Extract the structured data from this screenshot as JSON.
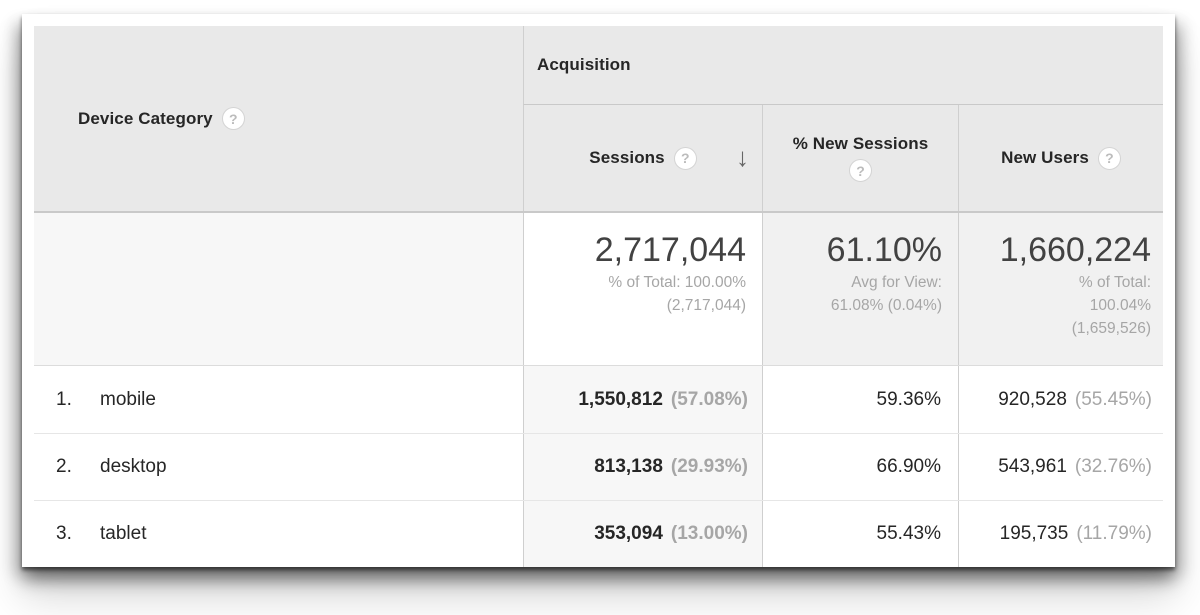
{
  "icons": {
    "help_glyph": "?",
    "sort_desc_glyph": "↓"
  },
  "table": {
    "dimension_header": {
      "label": "Device Category"
    },
    "group_header": {
      "label": "Acquisition"
    },
    "columns": [
      {
        "label": "Sessions",
        "sorted": "descending"
      },
      {
        "label": "% New Sessions"
      },
      {
        "label": "New Users"
      }
    ],
    "summary": {
      "sessions": {
        "value": "2,717,044",
        "notes": [
          "% of Total: 100.00%",
          "(2,717,044)"
        ]
      },
      "percent_new_sessions": {
        "value": "61.10%",
        "notes": [
          "Avg for View:",
          "61.08% (0.04%)"
        ]
      },
      "new_users": {
        "value": "1,660,224",
        "notes": [
          "% of Total:",
          "100.04%",
          "(1,659,526)"
        ]
      }
    },
    "rows": [
      {
        "index": "1.",
        "label": "mobile",
        "sessions": "1,550,812",
        "sessions_share": "(57.08%)",
        "percent_new_sessions": "59.36%",
        "new_users": "920,528",
        "new_users_share": "(55.45%)"
      },
      {
        "index": "2.",
        "label": "desktop",
        "sessions": "813,138",
        "sessions_share": "(29.93%)",
        "percent_new_sessions": "66.90%",
        "new_users": "543,961",
        "new_users_share": "(32.76%)"
      },
      {
        "index": "3.",
        "label": "tablet",
        "sessions": "353,094",
        "sessions_share": "(13.00%)",
        "percent_new_sessions": "55.43%",
        "new_users": "195,735",
        "new_users_share": "(11.79%)"
      }
    ]
  },
  "colors": {
    "header_bg": "#e9e9e9",
    "sorted_column_bg": "#f7f7f7",
    "summary_metric_bg": "#f1f1f1",
    "grid_line": "#cfcfcf",
    "text_primary": "#262626",
    "text_secondary": "#a6a6a6"
  }
}
